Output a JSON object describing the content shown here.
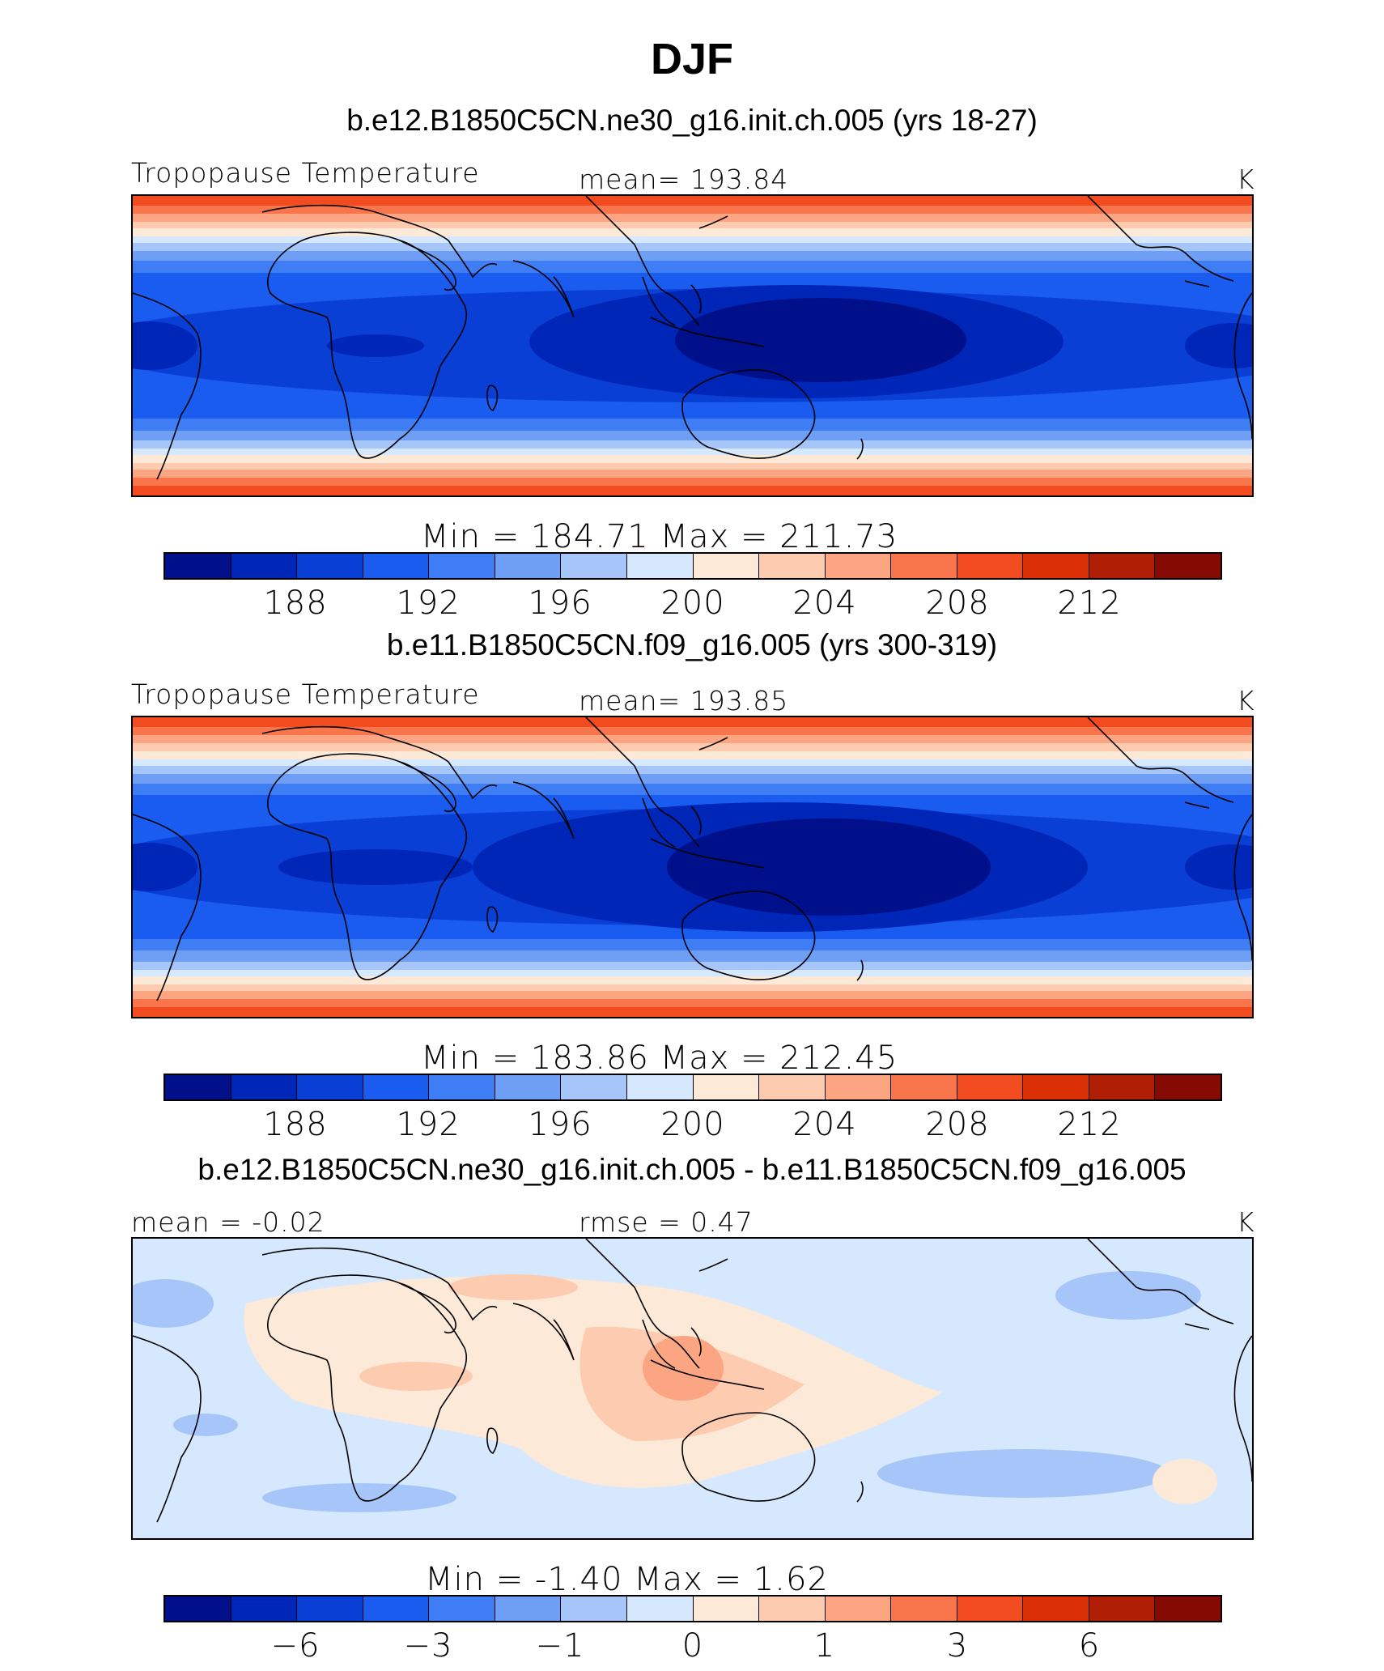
{
  "title": "DJF",
  "palette": [
    "#00108a",
    "#0026b8",
    "#0a3fd6",
    "#1a5cf0",
    "#3f7df5",
    "#6f9ef5",
    "#a6c6fa",
    "#d6e8fd",
    "#fde9d7",
    "#fdcbb0",
    "#fca582",
    "#f9754b",
    "#f14b1f",
    "#db3005",
    "#b01f05",
    "#850a03"
  ],
  "panels": [
    {
      "title": "b.e12.B1850C5CN.ne30_g16.init.ch.005 (yrs 18-27)",
      "left_label": "Tropopause Temperature",
      "center_label": "mean= 193.84",
      "units": "K",
      "minmax": "Min = 184.71 Max = 211.73",
      "colorbar_ticks": [
        "188",
        "192",
        "196",
        "200",
        "204",
        "208",
        "212"
      ],
      "field_min": 184.71,
      "field_max": 211.73
    },
    {
      "title": "b.e11.B1850C5CN.f09_g16.005 (yrs 300-319)",
      "left_label": "Tropopause Temperature",
      "center_label": "mean= 193.85",
      "units": "K",
      "minmax": "Min = 183.86 Max = 212.45",
      "colorbar_ticks": [
        "188",
        "192",
        "196",
        "200",
        "204",
        "208",
        "212"
      ],
      "field_min": 183.86,
      "field_max": 212.45
    },
    {
      "title": "b.e12.B1850C5CN.ne30_g16.init.ch.005 - b.e11.B1850C5CN.f09_g16.005",
      "left_label": "mean = -0.02",
      "center_label": "rmse = 0.47",
      "units": "K",
      "minmax": "Min = -1.40 Max = 1.62",
      "colorbar_ticks": [
        "−6",
        "−3",
        "−1",
        "0",
        "1",
        "3",
        "6"
      ],
      "field_min": -1.4,
      "field_max": 1.62
    }
  ]
}
